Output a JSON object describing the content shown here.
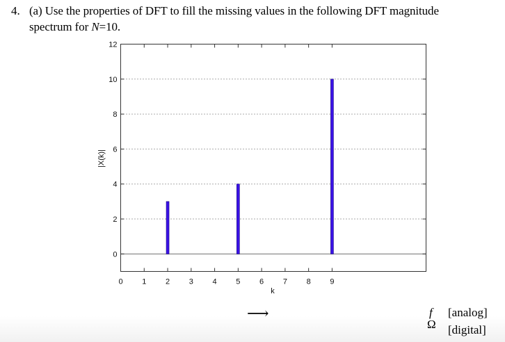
{
  "question": {
    "number": "4.",
    "line1": "(a) Use the properties of DFT to fill the missing values in the following DFT magnitude",
    "line2_prefix": "spectrum for ",
    "line2_var": "N",
    "line2_suffix": "=10."
  },
  "chart_data": {
    "type": "bar",
    "subtype": "stem",
    "title": "",
    "xlabel": "k",
    "ylabel": "|X(k)|",
    "xlim": [
      0,
      13
    ],
    "ylim": [
      -1,
      12
    ],
    "x_ticks": [
      0,
      1,
      2,
      3,
      4,
      5,
      6,
      7,
      8,
      9
    ],
    "y_ticks": [
      0,
      2,
      4,
      6,
      8,
      10,
      12
    ],
    "grid": "horizontal dotted at 2,4,6,8,10",
    "categories": [
      2,
      5,
      9
    ],
    "values": [
      3,
      4,
      10
    ],
    "bar_color": "#3a12e6",
    "zero_line_color": "#8a8a8a"
  },
  "footer": {
    "arrow": "⟶",
    "f_symbol": "f",
    "f_label": "[analog]",
    "omega_symbol": "Ω",
    "omega_label": "[digital]"
  }
}
